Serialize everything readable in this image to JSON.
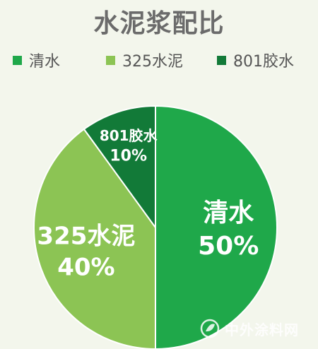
{
  "chart_data": {
    "type": "pie",
    "title": "水泥浆配比",
    "legend_position": "top",
    "slices": [
      {
        "name": "清水",
        "value": 50,
        "label_line1": "清水",
        "label_line2": "50%",
        "color": "#1fa84a"
      },
      {
        "name": "325水泥",
        "value": 40,
        "label_line1": "325水泥",
        "label_line2": "40%",
        "color": "#8cc454"
      },
      {
        "name": "801胶水",
        "value": 10,
        "label_line1": "801胶水",
        "label_line2": "10%",
        "color": "#127a38"
      }
    ]
  },
  "watermark": {
    "text": "中外涂料网",
    "icon": "leaf-logo-icon"
  }
}
